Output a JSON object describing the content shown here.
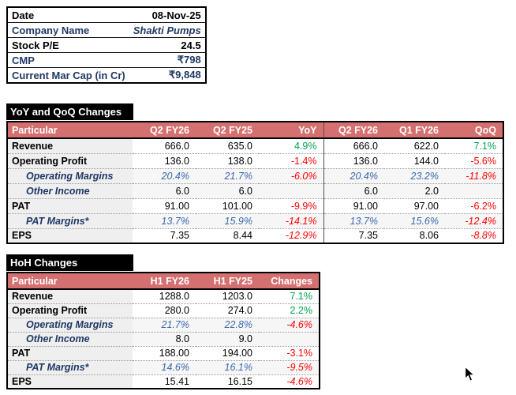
{
  "colors": {
    "navy": "#1F3864",
    "pink": "#D57070",
    "blueval": "#3A67AD",
    "green": "#00A550",
    "red": "#FE0000",
    "graycol": "#EFEFEF",
    "subtint": "#F6F6F6"
  },
  "info_table": {
    "rows": [
      {
        "label": "Date",
        "value": "08-Nov-25",
        "navy_label": false,
        "navy_value": false,
        "italic_value": false
      },
      {
        "label": "Company Name",
        "value": "Shakti Pumps",
        "navy_label": true,
        "navy_value": true,
        "italic_value": true
      },
      {
        "label": "Stock P/E",
        "value": "24.5",
        "navy_label": false,
        "navy_value": false,
        "italic_value": false
      },
      {
        "label": "CMP",
        "value": "₹798",
        "navy_label": true,
        "navy_value": true,
        "italic_value": false
      },
      {
        "label": "Current Mar Cap (in Cr)",
        "value": "₹9,848",
        "navy_label": true,
        "navy_value": true,
        "italic_value": false
      }
    ]
  },
  "yoy_qoq": {
    "title": "YoY and QoQ Changes",
    "headers": [
      "Particular",
      "Q2 FY26",
      "Q2 FY25",
      "YoY",
      "Q2 FY26",
      "Q1 FY26",
      "QoQ"
    ],
    "rows": [
      {
        "label": "Revenue",
        "sub": false,
        "blue_values": false,
        "values": [
          "666.0",
          "635.0"
        ],
        "change": {
          "text": "4.9%",
          "color": "green",
          "italic": false
        },
        "values2": [
          "666.0",
          "622.0"
        ],
        "change2": {
          "text": "7.1%",
          "color": "green",
          "italic": false
        }
      },
      {
        "label": "Operating Profit",
        "sub": false,
        "blue_values": false,
        "values": [
          "136.0",
          "138.0"
        ],
        "change": {
          "text": "-1.4%",
          "color": "red",
          "italic": false
        },
        "values2": [
          "136.0",
          "144.0"
        ],
        "change2": {
          "text": "-5.6%",
          "color": "red",
          "italic": false
        }
      },
      {
        "label": "Operating Margins",
        "sub": true,
        "blue_values": true,
        "values": [
          "20.4%",
          "21.7%"
        ],
        "change": {
          "text": "-6.0%",
          "color": "red",
          "italic": true
        },
        "values2": [
          "20.4%",
          "23.2%"
        ],
        "change2": {
          "text": "-11.8%",
          "color": "red",
          "italic": true
        }
      },
      {
        "label": "Other Income",
        "sub": true,
        "blue_values": false,
        "values": [
          "6.0",
          "6.0"
        ],
        "change": {
          "text": "",
          "color": "",
          "italic": false
        },
        "values2": [
          "6.0",
          "2.0"
        ],
        "change2": {
          "text": "",
          "color": "",
          "italic": false
        }
      },
      {
        "label": "PAT",
        "sub": false,
        "blue_values": false,
        "values": [
          "91.00",
          "101.00"
        ],
        "change": {
          "text": "-9.9%",
          "color": "red",
          "italic": false
        },
        "values2": [
          "91.00",
          "97.00"
        ],
        "change2": {
          "text": "-6.2%",
          "color": "red",
          "italic": false
        }
      },
      {
        "label": "PAT Margins*",
        "sub": true,
        "blue_values": true,
        "values": [
          "13.7%",
          "15.9%"
        ],
        "change": {
          "text": "-14.1%",
          "color": "red",
          "italic": true
        },
        "values2": [
          "13.7%",
          "15.6%"
        ],
        "change2": {
          "text": "-12.4%",
          "color": "red",
          "italic": true
        }
      },
      {
        "label": "EPS",
        "sub": false,
        "blue_values": false,
        "values": [
          "7.35",
          "8.44"
        ],
        "change": {
          "text": "-12.9%",
          "color": "red",
          "italic": true
        },
        "values2": [
          "7.35",
          "8.06"
        ],
        "change2": {
          "text": "-8.8%",
          "color": "red",
          "italic": true
        }
      }
    ]
  },
  "hoh": {
    "title": "HoH Changes",
    "headers": [
      "Particular",
      "H1 FY26",
      "H1 FY25",
      "Changes"
    ],
    "rows": [
      {
        "label": "Revenue",
        "sub": false,
        "blue_values": false,
        "values": [
          "1288.0",
          "1203.0"
        ],
        "change": {
          "text": "7.1%",
          "color": "green",
          "italic": false
        }
      },
      {
        "label": "Operating Profit",
        "sub": false,
        "blue_values": false,
        "values": [
          "280.0",
          "274.0"
        ],
        "change": {
          "text": "2.2%",
          "color": "green",
          "italic": false
        }
      },
      {
        "label": "Operating Margins",
        "sub": true,
        "blue_values": true,
        "values": [
          "21.7%",
          "22.8%"
        ],
        "change": {
          "text": "-4.6%",
          "color": "red",
          "italic": true
        }
      },
      {
        "label": "Other Income",
        "sub": true,
        "blue_values": false,
        "values": [
          "8.0",
          "9.0"
        ],
        "change": {
          "text": "",
          "color": "",
          "italic": false
        }
      },
      {
        "label": "PAT",
        "sub": false,
        "blue_values": false,
        "values": [
          "188.00",
          "194.00"
        ],
        "change": {
          "text": "-3.1%",
          "color": "red",
          "italic": false
        }
      },
      {
        "label": "PAT Margins*",
        "sub": true,
        "blue_values": true,
        "values": [
          "14.6%",
          "16.1%"
        ],
        "change": {
          "text": "-9.5%",
          "color": "red",
          "italic": true
        }
      },
      {
        "label": "EPS",
        "sub": false,
        "blue_values": false,
        "values": [
          "15.41",
          "16.15"
        ],
        "change": {
          "text": "-4.6%",
          "color": "red",
          "italic": true
        }
      }
    ]
  }
}
